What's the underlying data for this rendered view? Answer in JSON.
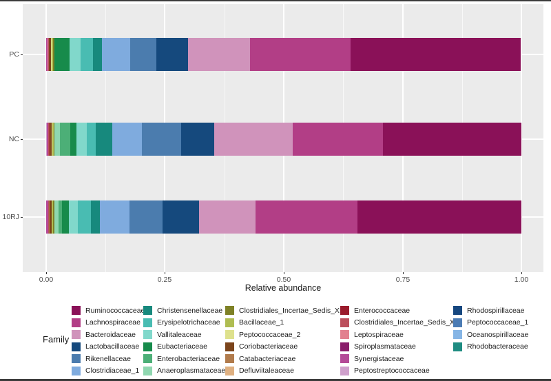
{
  "chart_data": {
    "type": "bar",
    "variant": "horizontal-stacked",
    "title": "",
    "xlabel": "Relative abundance",
    "ylabel": "",
    "legend_title": "Family",
    "legend_position": "bottom",
    "grid": true,
    "panel_background": "#EBEBEB",
    "categories": [
      "PC",
      "NC",
      "10RJ"
    ],
    "x_ticks": [
      "0.00",
      "0.25",
      "0.50",
      "0.75",
      "1.00"
    ],
    "x_tick_values": [
      0,
      0.25,
      0.5,
      0.75,
      1.0
    ],
    "xlim": [
      0,
      1
    ],
    "stack_order_note": "segments stacked right-to-left in legend order; values are estimated relative abundances per sample [PC, NC, 10RJ]",
    "series": [
      {
        "name": "Ruminococcaceae",
        "color": "#8A1158",
        "values": [
          0.357,
          0.291,
          0.345
        ]
      },
      {
        "name": "Lachnospiraceae",
        "color": "#B23E86",
        "values": [
          0.212,
          0.191,
          0.215
        ]
      },
      {
        "name": "Bacteroidaceae",
        "color": "#D093BB",
        "values": [
          0.13,
          0.165,
          0.12
        ]
      },
      {
        "name": "Lactobacillaceae",
        "color": "#15497D",
        "values": [
          0.067,
          0.07,
          0.076
        ]
      },
      {
        "name": "Rikenellaceae",
        "color": "#4B7CAE",
        "values": [
          0.055,
          0.083,
          0.07
        ]
      },
      {
        "name": "Clostridiaceae_1",
        "color": "#7FABDE",
        "values": [
          0.06,
          0.062,
          0.062
        ]
      },
      {
        "name": "Christensenellaceae",
        "color": "#17897D",
        "values": [
          0.019,
          0.035,
          0.019
        ]
      },
      {
        "name": "Erysipelotrichaceae",
        "color": "#49BCB2",
        "values": [
          0.026,
          0.019,
          0.028
        ]
      },
      {
        "name": "Vallitaleaceae",
        "color": "#81D8CB",
        "values": [
          0.022,
          0.022,
          0.019
        ]
      },
      {
        "name": "Eubacteriaceae",
        "color": "#178B4B",
        "values": [
          0.032,
          0.012,
          0.015
        ]
      },
      {
        "name": "Enterobacteriaceae",
        "color": "#4CAF77",
        "values": [
          0,
          0.022,
          0.007
        ]
      },
      {
        "name": "Anaeroplasmataceae",
        "color": "#8FD7B0",
        "values": [
          0,
          0.012,
          0.009
        ]
      },
      {
        "name": "Clostridiales_Incertae_Sedis_XIII",
        "color": "#7E8126",
        "values": [
          0.003,
          0.002,
          0.0025
        ]
      },
      {
        "name": "Bacillaceae_1",
        "color": "#AFBD52",
        "values": [
          0.003,
          0.0025,
          0.0025
        ]
      },
      {
        "name": "Peptococcaceae_2",
        "color": "#DEE18D",
        "values": [
          0.0015,
          0.001,
          0.001
        ]
      },
      {
        "name": "Coriobacteriaceae",
        "color": "#7B441B",
        "values": [
          0.0045,
          0.004,
          0.004
        ]
      },
      {
        "name": "Catabacteriaceae",
        "color": "#B17B4C",
        "values": [
          0,
          0.001,
          0.001
        ]
      },
      {
        "name": "Defluviitaleaceae",
        "color": "#DFB081",
        "values": [
          0,
          0,
          0
        ]
      },
      {
        "name": "Enterococcaceae",
        "color": "#9A1B2C",
        "values": [
          0,
          0.001,
          0
        ]
      },
      {
        "name": "Clostridiales_Incertae_Sedis_XII",
        "color": "#BC4F5C",
        "values": [
          0.0015,
          0.001,
          0.001
        ]
      },
      {
        "name": "Leptospiraceae",
        "color": "#E2808F",
        "values": [
          0.0015,
          0.001,
          0.001
        ]
      },
      {
        "name": "Spiroplasmataceae",
        "color": "#8A1D6B",
        "values": [
          0,
          0,
          0
        ]
      },
      {
        "name": "Synergistaceae",
        "color": "#B44A97",
        "values": [
          0.003,
          0.003,
          0.004
        ]
      },
      {
        "name": "Peptostreptococcaceae",
        "color": "#CFA0CC",
        "values": [
          0,
          0.001,
          0
        ]
      },
      {
        "name": "Rhodospirillaceae",
        "color": "#16477F",
        "values": [
          0,
          0,
          0
        ]
      },
      {
        "name": "Peptococcaceae_1",
        "color": "#4C7CB4",
        "values": [
          0,
          0,
          0
        ]
      },
      {
        "name": "Oceanospirillaceae",
        "color": "#86B5E5",
        "values": [
          0,
          0,
          0
        ]
      },
      {
        "name": "Rhodobacteraceae",
        "color": "#1F8C82",
        "values": [
          0,
          0,
          0
        ]
      }
    ]
  }
}
